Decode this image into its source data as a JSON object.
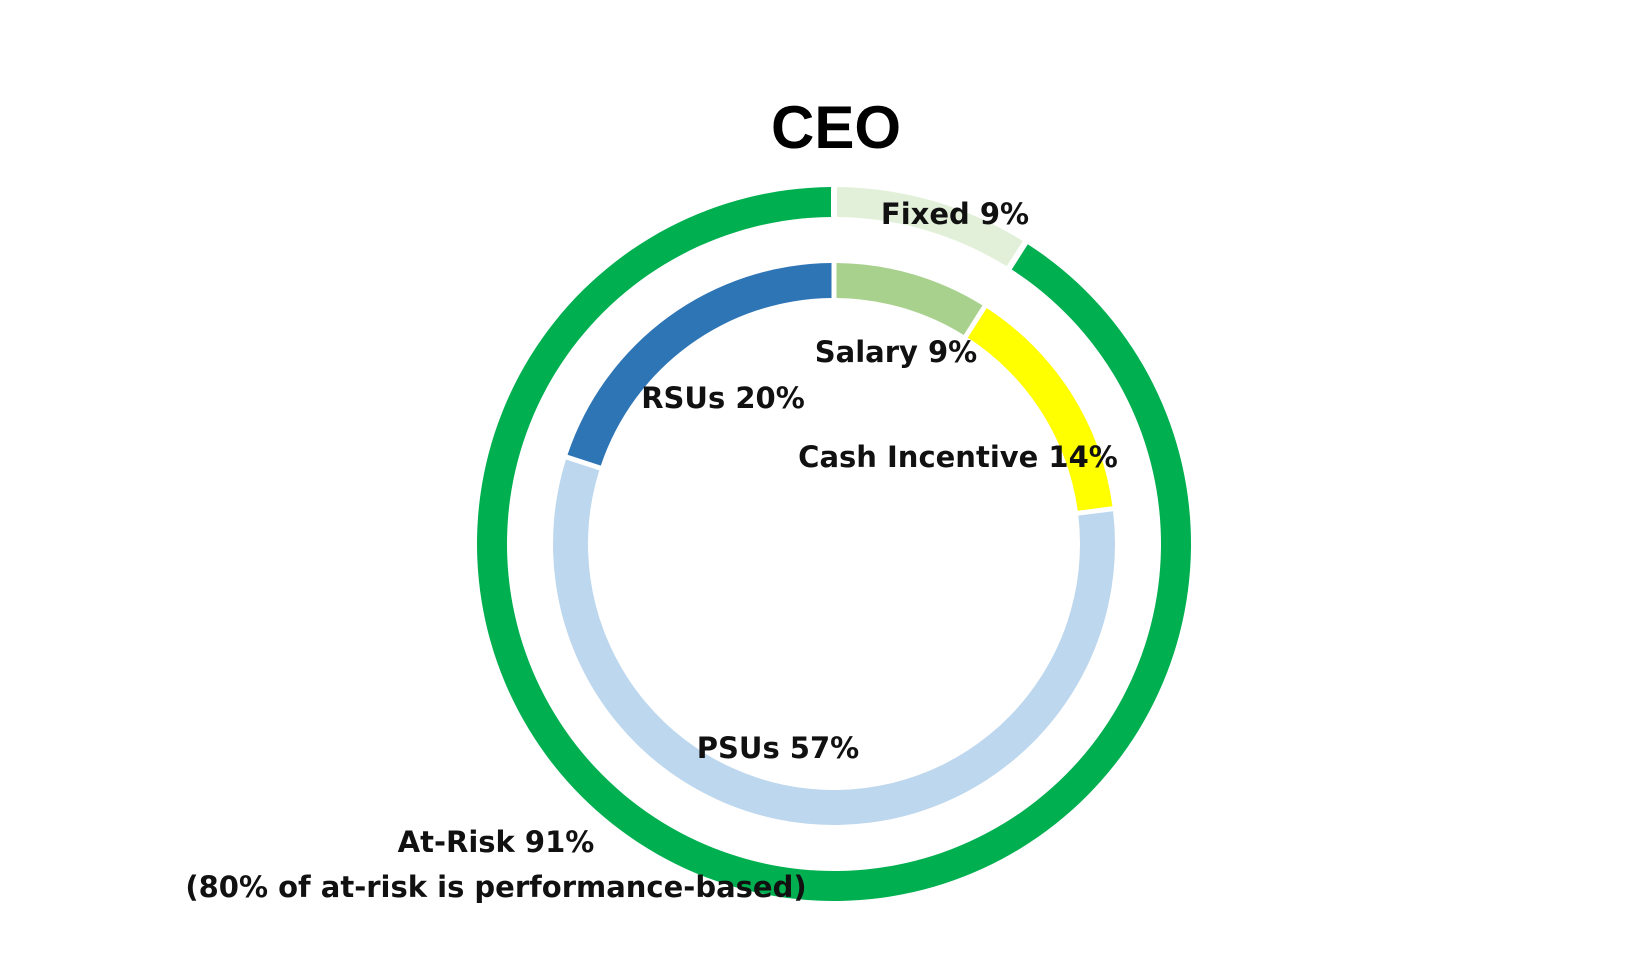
{
  "chart_data": {
    "type": "pie",
    "title": "CEO",
    "rings": [
      {
        "name": "outer",
        "slices": [
          {
            "label": "Fixed 9%",
            "value": 9,
            "color": "#E2F0D9"
          },
          {
            "label": "At-Risk 91%",
            "value": 91,
            "color": "#00B050"
          }
        ]
      },
      {
        "name": "inner",
        "slices": [
          {
            "label": "Salary 9%",
            "value": 9,
            "color": "#A9D18E"
          },
          {
            "label": "Cash Incentive 14%",
            "value": 14,
            "color": "#FFFF00"
          },
          {
            "label": "PSUs 57%",
            "value": 57,
            "color": "#BDD7EE"
          },
          {
            "label": "RSUs 20%",
            "value": 20,
            "color": "#2E75B6"
          }
        ]
      }
    ],
    "annotation": "(80% of at-risk is performance-based)"
  }
}
